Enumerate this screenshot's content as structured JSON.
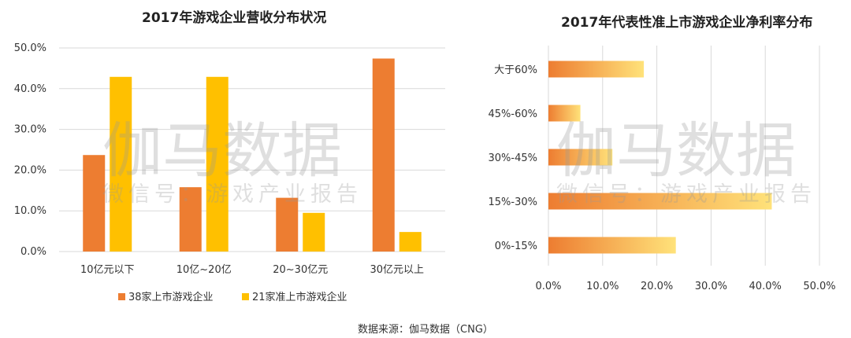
{
  "chart_data": [
    {
      "type": "bar",
      "title": "2017年游戏企业营收分布状况",
      "categories": [
        "10亿元以下",
        "10亿~20亿",
        "20~30亿元",
        "30亿元以上"
      ],
      "series": [
        {
          "name": "38家上市游戏企业",
          "values": [
            23.7,
            15.8,
            13.2,
            47.4
          ],
          "color": "#ED7D31"
        },
        {
          "name": "21家准上市游戏企业",
          "values": [
            42.9,
            42.9,
            9.5,
            4.8
          ],
          "color": "#FFC000"
        }
      ],
      "yticks": [
        "0.0%",
        "10.0%",
        "20.0%",
        "30.0%",
        "40.0%",
        "50.0%"
      ],
      "ylim": [
        0,
        50
      ],
      "grid": true,
      "legend": "bottom"
    },
    {
      "type": "bar",
      "orientation": "horizontal",
      "title": "2017年代表性准上市游戏企业净利率分布",
      "categories": [
        "大于60%",
        "45%-60%",
        "30%-45%",
        "15%-30%",
        "0%-15%"
      ],
      "values": [
        17.6,
        5.9,
        11.8,
        41.2,
        23.5
      ],
      "xticks": [
        "0.0%",
        "10.0%",
        "20.0%",
        "30.0%",
        "40.0%",
        "50.0%"
      ],
      "xlim": [
        0,
        50
      ],
      "grid": true,
      "gradient": [
        "#ED7D31",
        "#FFE27A"
      ]
    }
  ],
  "watermark": {
    "brand": "伽马数据",
    "tagline": "微信号：游戏产业报告"
  },
  "source": "数据来源：伽马数据（CNG）"
}
